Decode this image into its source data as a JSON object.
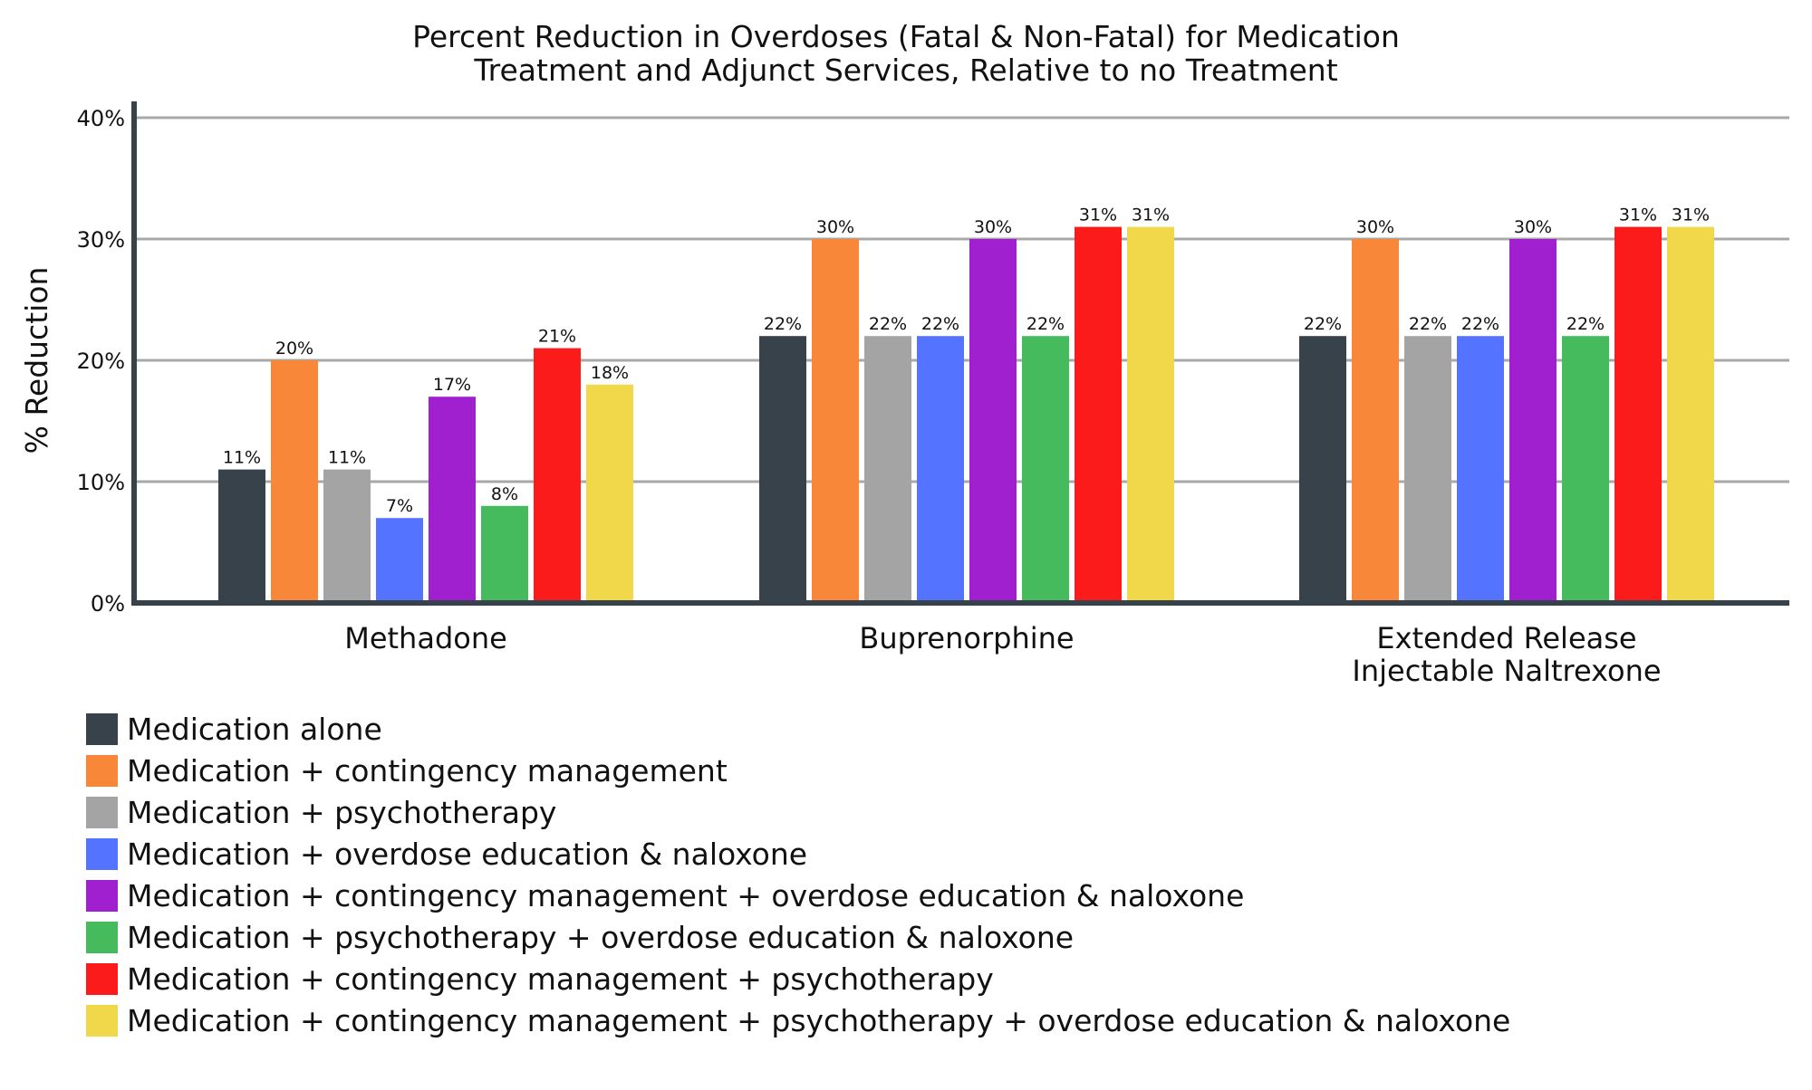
{
  "chart_data": {
    "type": "bar",
    "title": "Percent Reduction in Overdoses (Fatal & Non-Fatal) for Medication Treatment and Adjunct Services, Relative to no Treatment",
    "title_lines": [
      "Percent Reduction in Overdoses (Fatal & Non-Fatal) for Medication",
      "Treatment and Adjunct Services, Relative to no Treatment"
    ],
    "xlabel": "",
    "ylabel": "% Reduction",
    "ylim": [
      0,
      40
    ],
    "yticks": [
      "0%",
      "10%",
      "20%",
      "30%",
      "40%"
    ],
    "grid": true,
    "legend_position": "bottom-left",
    "categories": [
      [
        "Methadone"
      ],
      [
        "Buprenorphine"
      ],
      [
        "Extended Release",
        "Injectable Naltrexone"
      ]
    ],
    "series": [
      {
        "name": "Medication alone",
        "color": "#37424a",
        "values": [
          11,
          22,
          22
        ],
        "labels": [
          "11%",
          "22%",
          "22%"
        ]
      },
      {
        "name": "Medication + contingency management",
        "color": "#f9873a",
        "values": [
          20,
          30,
          30
        ],
        "labels": [
          "20%",
          "30%",
          "30%"
        ]
      },
      {
        "name": "Medication + psychotherapy",
        "color": "#a4a4a4",
        "values": [
          11,
          22,
          22
        ],
        "labels": [
          "11%",
          "22%",
          "22%"
        ]
      },
      {
        "name": "Medication + overdose education & naloxone",
        "color": "#5473ff",
        "values": [
          7,
          22,
          22
        ],
        "labels": [
          "7%",
          "22%",
          "22%"
        ]
      },
      {
        "name": "Medication + contingency management + overdose education & naloxone",
        "color": "#a020cf",
        "values": [
          17,
          30,
          30
        ],
        "labels": [
          "17%",
          "30%",
          "30%"
        ]
      },
      {
        "name": "Medication + psychotherapy + overdose education & naloxone",
        "color": "#45bb5d",
        "values": [
          8,
          22,
          22
        ],
        "labels": [
          "8%",
          "22%",
          "22%"
        ]
      },
      {
        "name": "Medication + contingency management + psychotherapy",
        "color": "#fb1b1b",
        "values": [
          21,
          31,
          31
        ],
        "labels": [
          "21%",
          "31%",
          "31%"
        ]
      },
      {
        "name": "Medication + contingency management + psychotherapy + overdose education & naloxone",
        "color": "#f1d84a",
        "values": [
          18,
          31,
          31
        ],
        "labels": [
          "18%",
          "31%",
          "31%"
        ]
      }
    ]
  }
}
